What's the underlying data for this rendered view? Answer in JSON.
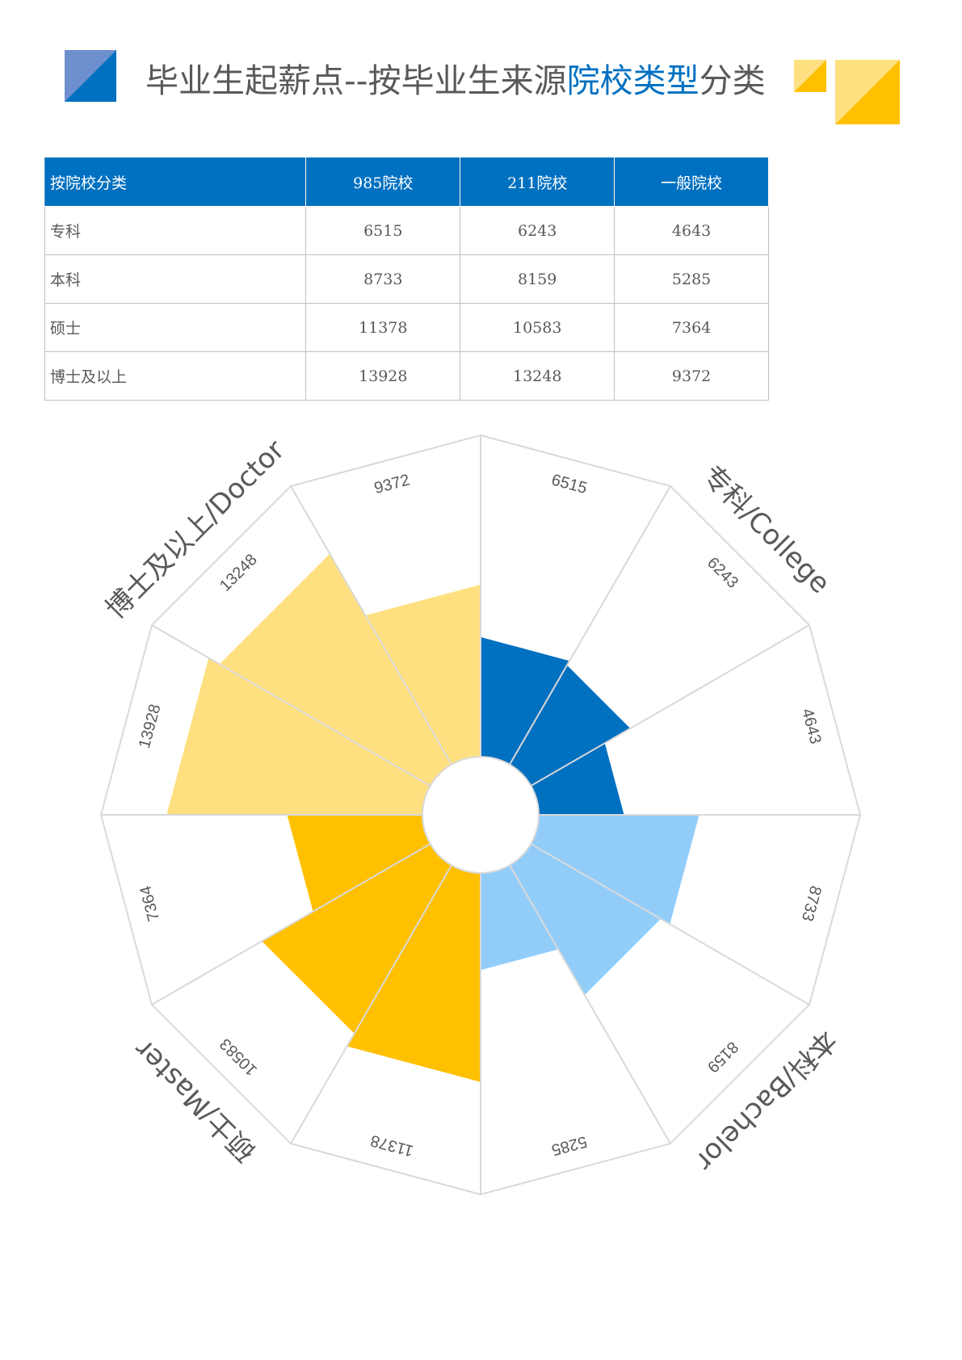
{
  "title": {
    "part1": "毕业生起薪点--按毕业生来源",
    "highlight": "院校类型",
    "part2": "分类"
  },
  "colors": {
    "blue_dark": "#0070c0",
    "blue_light": "#92cdfa",
    "yellow_light": "#ffe080",
    "yellow_dark": "#ffc000",
    "deco_blue_light": "#6d8fce",
    "deco_yellow_light": "#ffe080",
    "deco_yellow": "#ffc000"
  },
  "table": {
    "headers": [
      "按院校分类",
      "985院校",
      "211院校",
      "一般院校"
    ],
    "rows": [
      [
        "专科",
        "6515",
        "6243",
        "4643"
      ],
      [
        "本科",
        "8733",
        "8159",
        "5285"
      ],
      [
        "硕士",
        "11378",
        "10583",
        "7364"
      ],
      [
        "博士及以上",
        "13928",
        "13248",
        "9372"
      ]
    ]
  },
  "chart_data": {
    "type": "polar-bar",
    "categories": [
      "985院校",
      "211院校",
      "一般院校"
    ],
    "groups": [
      {
        "name": "专科/College",
        "values": [
          6515,
          6243,
          4643
        ],
        "color": "#0070c0"
      },
      {
        "name": "本科/Bachelor",
        "values": [
          8733,
          8159,
          5285
        ],
        "color": "#92cdfa"
      },
      {
        "name": "硕士/Master",
        "values": [
          11378,
          10583,
          7364
        ],
        "color": "#ffc000"
      },
      {
        "name": "博士及以上/Doctor",
        "values": [
          13928,
          13248,
          9372
        ],
        "color": "#ffe080"
      }
    ],
    "rmax": 17500
  }
}
